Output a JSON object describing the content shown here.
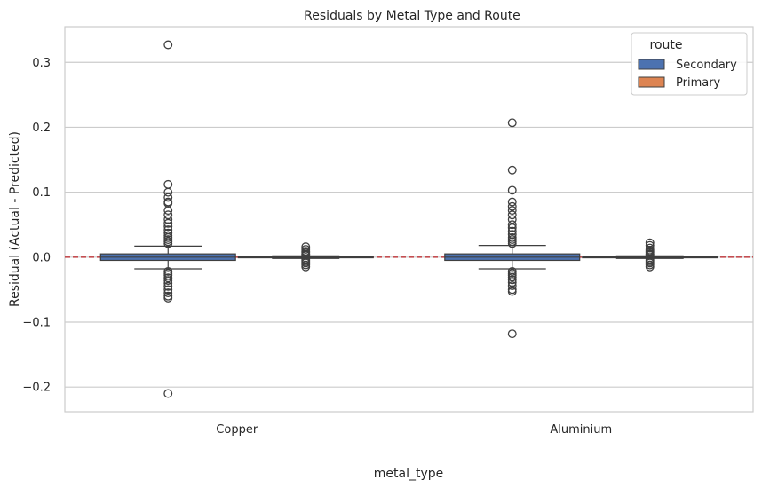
{
  "chart_data": {
    "type": "box",
    "title": "Residuals by Metal Type and Route",
    "xlabel": "metal_type",
    "ylabel": "Residual (Actual - Predicted)",
    "ylim": [
      -0.238,
      0.355
    ],
    "yticks": [
      -0.2,
      -0.1,
      0.0,
      0.1,
      0.2,
      0.3
    ],
    "ytick_labels": [
      "−0.2",
      "−0.1",
      "0.0",
      "0.1",
      "0.2",
      "0.3"
    ],
    "grid": "horizontal",
    "reference_line": {
      "y": 0.0,
      "style": "dashed",
      "color": "#c44e52"
    },
    "categories": [
      "Copper",
      "Aluminium"
    ],
    "legend": {
      "title": "route",
      "placement": "top-right"
    },
    "series": [
      {
        "name": "Secondary",
        "color": "#4c72b0",
        "boxes": [
          {
            "q1": -0.005,
            "median": 0.0,
            "q3": 0.005,
            "whisker_low": -0.018,
            "whisker_high": 0.017,
            "outliers": [
              0.327,
              0.112,
              0.1,
              0.092,
              0.085,
              0.083,
              0.072,
              0.065,
              0.058,
              0.052,
              0.047,
              0.042,
              0.037,
              0.033,
              0.03,
              0.027,
              0.024,
              0.021,
              -0.022,
              -0.025,
              -0.028,
              -0.032,
              -0.036,
              -0.04,
              -0.045,
              -0.05,
              -0.055,
              -0.06,
              -0.063,
              -0.21
            ]
          },
          {
            "q1": -0.005,
            "median": 0.0,
            "q3": 0.005,
            "whisker_low": -0.018,
            "whisker_high": 0.018,
            "outliers": [
              0.207,
              0.134,
              0.103,
              0.085,
              0.078,
              0.072,
              0.065,
              0.058,
              0.05,
              0.045,
              0.04,
              0.035,
              0.03,
              0.027,
              0.024,
              0.021,
              -0.022,
              -0.025,
              -0.028,
              -0.031,
              -0.035,
              -0.039,
              -0.044,
              -0.05,
              -0.053,
              -0.118
            ]
          }
        ]
      },
      {
        "name": "Primary",
        "color": "#dd8452",
        "boxes": [
          {
            "q1": -0.001,
            "median": 0.0,
            "q3": 0.001,
            "whisker_low": -0.002,
            "whisker_high": 0.002,
            "outliers": [
              0.016,
              0.012,
              0.009,
              0.007,
              0.005,
              0.004,
              0.003,
              -0.003,
              -0.005,
              -0.007,
              -0.009,
              -0.012,
              -0.015
            ]
          },
          {
            "q1": -0.001,
            "median": 0.0,
            "q3": 0.001,
            "whisker_low": -0.002,
            "whisker_high": 0.002,
            "outliers": [
              0.022,
              0.018,
              0.014,
              0.011,
              0.009,
              0.007,
              0.005,
              0.004,
              0.003,
              -0.003,
              -0.005,
              -0.007,
              -0.009,
              -0.012,
              -0.015
            ]
          }
        ]
      }
    ]
  }
}
